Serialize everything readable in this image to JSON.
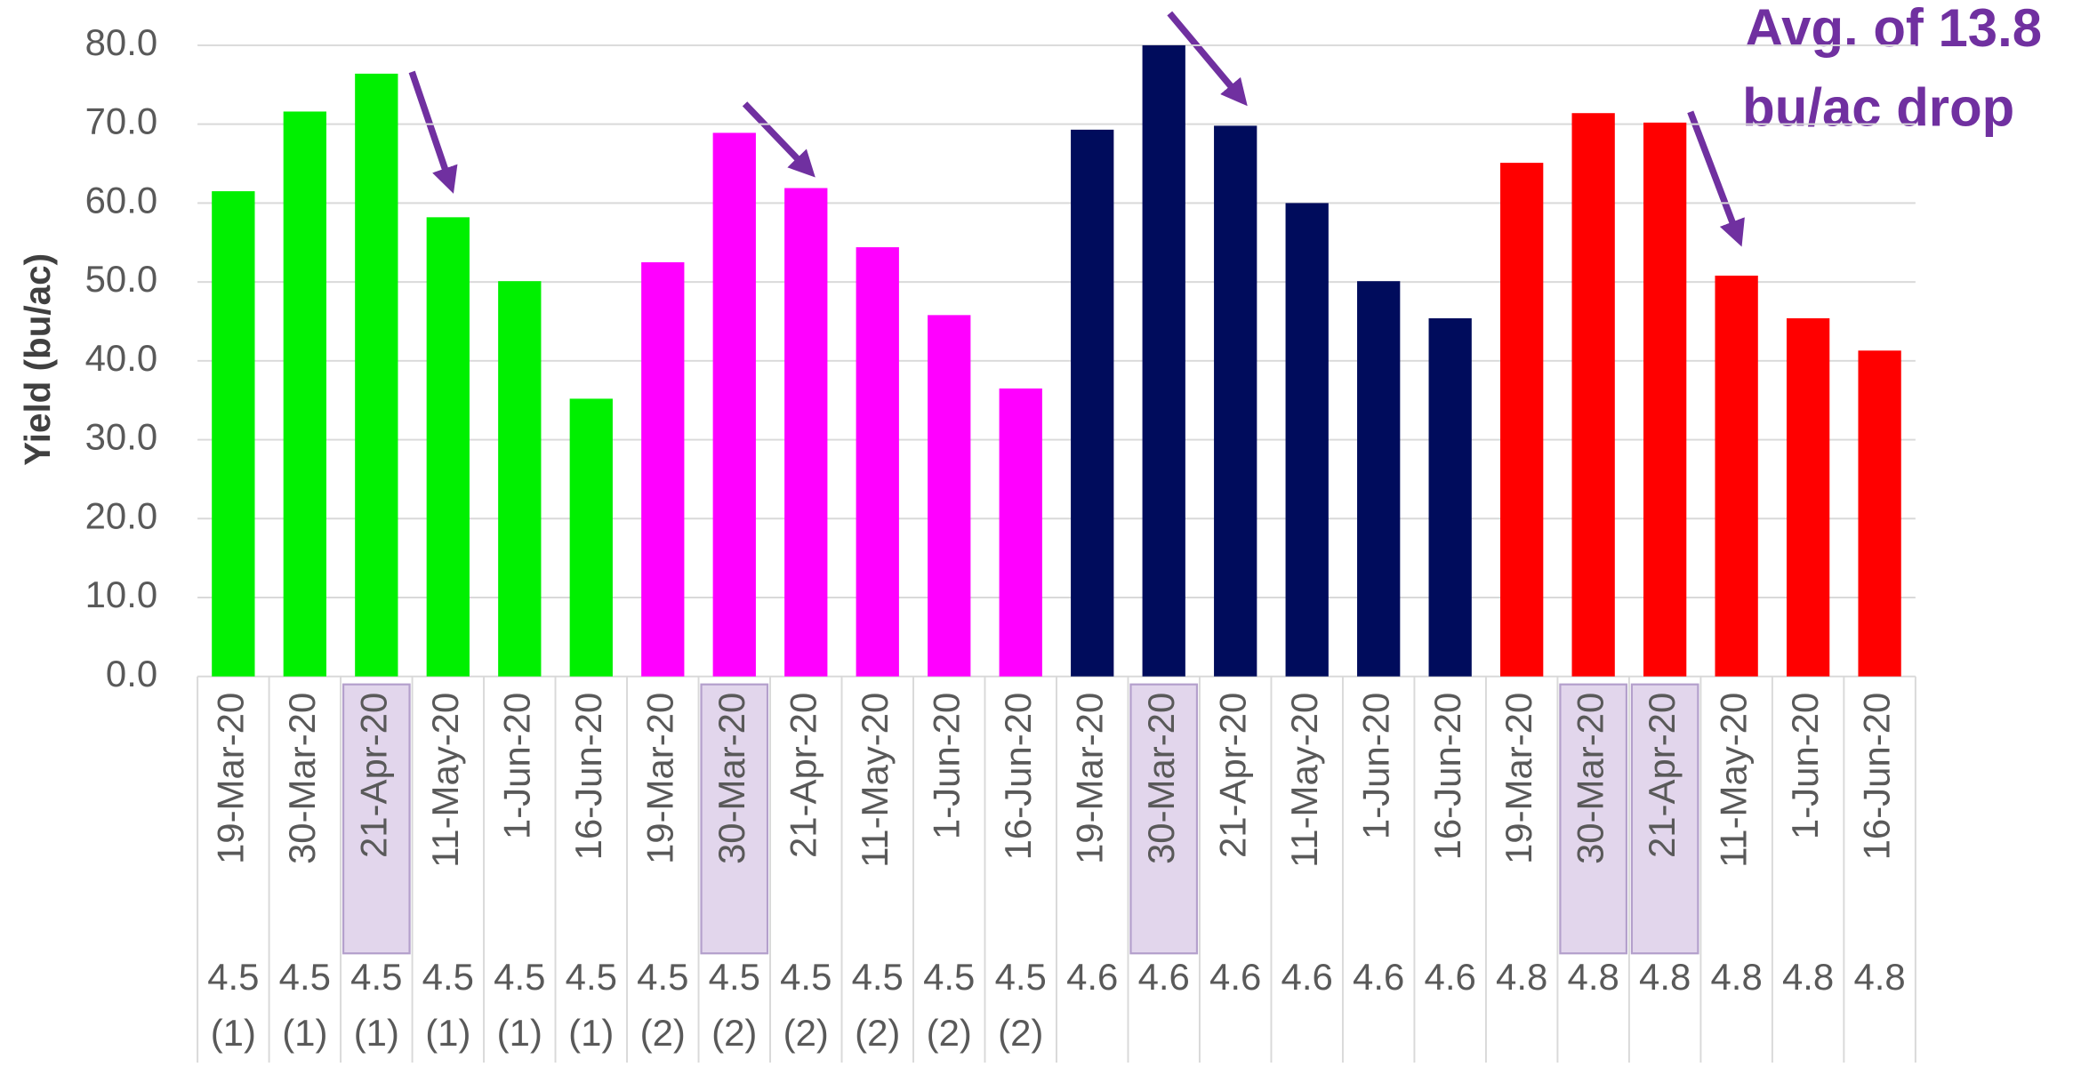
{
  "chart_data": {
    "type": "bar",
    "ylabel": "Yield (bu/ac)",
    "annotation": [
      "Avg. of 13.8",
      "bu/ac drop"
    ],
    "categories": [
      "19-Mar-20",
      "30-Mar-20",
      "21-Apr-20",
      "11-May-20",
      "1-Jun-20",
      "16-Jun-20",
      "19-Mar-20",
      "30-Mar-20",
      "21-Apr-20",
      "11-May-20",
      "1-Jun-20",
      "16-Jun-20",
      "19-Mar-20",
      "30-Mar-20",
      "21-Apr-20",
      "11-May-20",
      "1-Jun-20",
      "16-Jun-20",
      "19-Mar-20",
      "30-Mar-20",
      "21-Apr-20",
      "11-May-20",
      "1-Jun-20",
      "16-Jun-20"
    ],
    "group_labels": [
      [
        "4.5",
        "(1)"
      ],
      [
        "4.5",
        "(1)"
      ],
      [
        "4.5",
        "(1)"
      ],
      [
        "4.5",
        "(1)"
      ],
      [
        "4.5",
        "(1)"
      ],
      [
        "4.5",
        "(1)"
      ],
      [
        "4.5",
        "(2)"
      ],
      [
        "4.5",
        "(2)"
      ],
      [
        "4.5",
        "(2)"
      ],
      [
        "4.5",
        "(2)"
      ],
      [
        "4.5",
        "(2)"
      ],
      [
        "4.5",
        "(2)"
      ],
      [
        "4.6"
      ],
      [
        "4.6"
      ],
      [
        "4.6"
      ],
      [
        "4.6"
      ],
      [
        "4.6"
      ],
      [
        "4.6"
      ],
      [
        "4.8"
      ],
      [
        "4.8"
      ],
      [
        "4.8"
      ],
      [
        "4.8"
      ],
      [
        "4.8"
      ],
      [
        "4.8"
      ]
    ],
    "values": [
      61.5,
      71.6,
      76.4,
      58.2,
      50.1,
      35.2,
      52.5,
      68.9,
      61.9,
      54.4,
      45.8,
      36.5,
      69.3,
      80.0,
      69.8,
      60.0,
      50.1,
      45.4,
      65.1,
      71.4,
      70.2,
      50.8,
      45.4,
      41.3
    ],
    "colors": [
      "#00f000",
      "#00f000",
      "#00f000",
      "#00f000",
      "#00f000",
      "#00f000",
      "#ff00ff",
      "#ff00ff",
      "#ff00ff",
      "#ff00ff",
      "#ff00ff",
      "#ff00ff",
      "#000c5c",
      "#000c5c",
      "#000c5c",
      "#000c5c",
      "#000c5c",
      "#000c5c",
      "#ff0000",
      "#ff0000",
      "#ff0000",
      "#ff0000",
      "#ff0000",
      "#ff0000"
    ],
    "ylim": [
      0,
      80
    ],
    "yticks": [
      {
        "value": 0,
        "label": "0.0"
      },
      {
        "value": 10,
        "label": "10.0"
      },
      {
        "value": 20,
        "label": "20.0"
      },
      {
        "value": 30,
        "label": "30.0"
      },
      {
        "value": 40,
        "label": "40.0"
      },
      {
        "value": 50,
        "label": "50.0"
      },
      {
        "value": 60,
        "label": "60.0"
      },
      {
        "value": 70,
        "label": "70.0"
      },
      {
        "value": 80,
        "label": "80.0"
      }
    ],
    "grid": true
  }
}
